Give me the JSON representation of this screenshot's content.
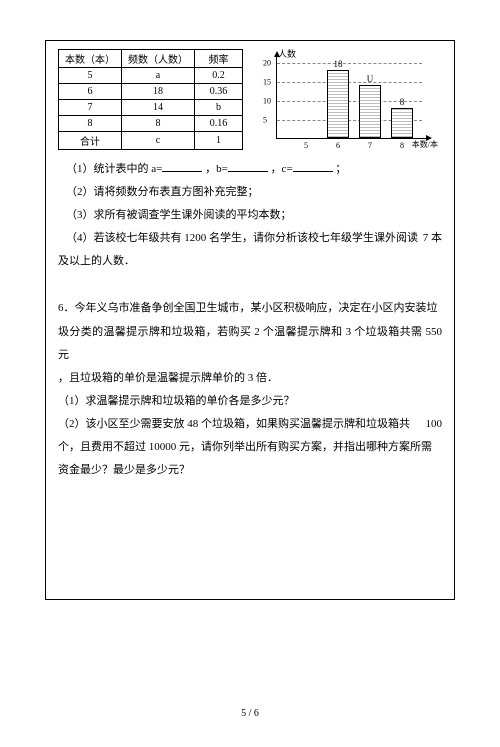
{
  "table": {
    "headers": [
      "本数（本）",
      "频数（人数）",
      "频率"
    ],
    "rows": [
      [
        "5",
        "a",
        "0.2"
      ],
      [
        "6",
        "18",
        "0.36"
      ],
      [
        "7",
        "14",
        "b"
      ],
      [
        "8",
        "8",
        "0.16"
      ],
      [
        "合计",
        "c",
        "1"
      ]
    ]
  },
  "chart": {
    "y_label": "人数",
    "x_label": "本数/本",
    "y_ticks": [
      5,
      10,
      15,
      20
    ],
    "y_max": 20,
    "bars": [
      {
        "x": "5",
        "value": null,
        "label": "",
        "pos": 18
      },
      {
        "x": "6",
        "value": 18,
        "label": "18",
        "pos": 50
      },
      {
        "x": "7",
        "value": 14,
        "label": "U",
        "pos": 82
      },
      {
        "x": "8",
        "value": 8,
        "label": "8",
        "pos": 114
      }
    ],
    "axis_height": 82,
    "colors": {
      "bar_fill": "#ffffff",
      "bar_border": "#000000",
      "grid": "#888888"
    }
  },
  "q1": {
    "l1a": "（1）统计表中的 a=",
    "l1b": "，b=",
    "l1c": "，c=",
    "l1d": "；",
    "l2": "（2）请将频数分布表直方图补充完整；",
    "l3": "（3）求所有被调查学生课外阅读的平均本数；",
    "l4a": "（4）若该校七年级共有 1200 名学生，请你分析该校七年级学生课外阅读",
    "l4b": "7 本",
    "l5": "及以上的人数．"
  },
  "q6": {
    "p1": "6．今年义乌市准备争创全国卫生城市，某小区积极响应，决定在小区内安装垃",
    "p2": "圾分类的温馨提示牌和垃圾箱，若购买 2 个温馨提示牌和 3 个垃圾箱共需 550 元",
    "p3": "，且垃圾箱的单价是温馨提示牌单价的 3 倍．",
    "p4": "（1）求温馨提示牌和垃圾箱的单价各是多少元？",
    "p5a": "（2）该小区至少需要安放 48 个垃圾箱，如果购买温馨提示牌和垃圾箱共",
    "p5b": "100",
    "p6": "个，且费用不超过 10000 元，请你列举出所有购买方案，并指出哪种方案所需",
    "p7": "资金最少？最少是多少元？"
  },
  "page": "5 / 6"
}
